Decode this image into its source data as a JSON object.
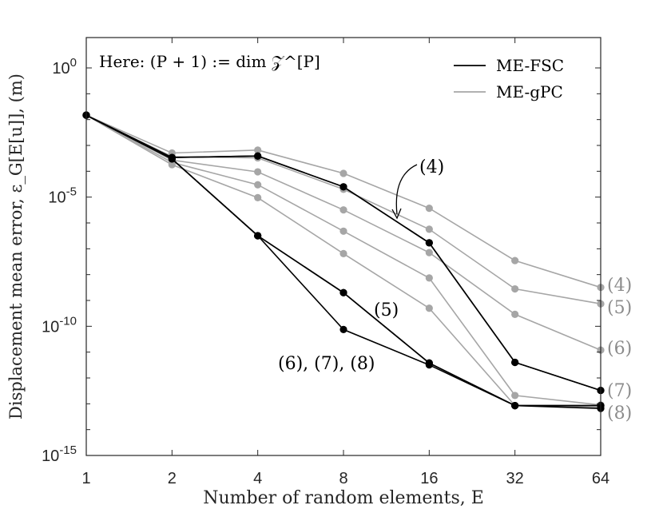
{
  "colors": {
    "me_fsc": "#000000",
    "me_gpc": "#a6a6a6",
    "axis": "#262626"
  },
  "chart_data": {
    "type": "line",
    "xlabel": "Number of random elements, E",
    "ylabel": "Displacement mean error, ε_G[E[u]], (m)",
    "annotation": "Here: (P + 1) := dim 𝒵^[P]",
    "x_scale": "log2",
    "y_scale": "log10",
    "x": [
      1,
      2,
      4,
      8,
      16,
      32,
      64
    ],
    "x_tick_labels": [
      "1",
      "2",
      "4",
      "8",
      "16",
      "32",
      "64"
    ],
    "y_ticks": [
      {
        "value": 1,
        "base": "10",
        "exp": "0"
      },
      {
        "value": 1e-05,
        "base": "10",
        "exp": "-5"
      },
      {
        "value": 1e-10,
        "base": "10",
        "exp": "-10"
      },
      {
        "value": 1e-15,
        "base": "10",
        "exp": "-15"
      }
    ],
    "ylim": [
      1e-15,
      3
    ],
    "xlim": [
      1,
      64
    ],
    "grid": false,
    "legend_position": "top-right",
    "legend": [
      {
        "label": "ME-FSC",
        "color": "#000000"
      },
      {
        "label": "ME-gPC",
        "color": "#a6a6a6"
      }
    ],
    "series": [
      {
        "group": "ME-gPC",
        "level": "(4)",
        "values": [
          0.0148,
          0.00051,
          0.00066,
          8.3e-05,
          3.7e-06,
          3.5e-08,
          3.2e-09
        ]
      },
      {
        "group": "ME-gPC",
        "level": "(5)",
        "values": [
          0.0148,
          0.00037,
          0.00033,
          2e-05,
          5.7e-07,
          2.8e-09,
          7.4e-10
        ]
      },
      {
        "group": "ME-gPC",
        "level": "(6)",
        "values": [
          0.0148,
          0.00027,
          9.5e-05,
          3.2e-06,
          7.1e-08,
          2.9e-10,
          1.2e-11
        ]
      },
      {
        "group": "ME-gPC",
        "level": "(7)",
        "values": [
          0.0148,
          0.00022,
          3e-05,
          4.8e-07,
          7.4e-09,
          2.1e-13,
          9e-14
        ]
      },
      {
        "group": "ME-gPC",
        "level": "(8)",
        "values": [
          0.0148,
          0.00018,
          9.5e-06,
          6.5e-08,
          5e-10,
          8.5e-14,
          7.2e-14
        ]
      },
      {
        "group": "ME-FSC",
        "level": "(4)",
        "values": [
          0.0148,
          0.00034,
          0.00039,
          2.5e-05,
          1.7e-07,
          4e-12,
          3.3e-13
        ]
      },
      {
        "group": "ME-FSC",
        "level": "(5)",
        "values": [
          0.0148,
          0.00034,
          0.00039,
          2.5e-05,
          1.7e-07,
          4e-12,
          3.3e-13
        ]
      },
      {
        "group": "ME-FSC",
        "level": "(6)",
        "values": [
          0.0148,
          0.0003,
          3.2e-07,
          2e-09,
          3.8e-12,
          8.5e-14,
          8.5e-14
        ]
      },
      {
        "group": "ME-FSC",
        "level": "(7)",
        "values": [
          0.0148,
          0.0003,
          3.2e-07,
          2e-09,
          3.8e-12,
          8.5e-14,
          8.5e-14
        ]
      },
      {
        "group": "ME-FSC",
        "level": "(8)",
        "values": [
          0.0148,
          0.0003,
          3.2e-07,
          7.5e-11,
          3.2e-12,
          8.5e-14,
          6.6e-14
        ]
      }
    ],
    "annotations": [
      {
        "text": "(4)",
        "color": "#000000"
      },
      {
        "text": "(5)",
        "color": "#000000"
      },
      {
        "text": "(6), (7), (8)",
        "color": "#000000"
      }
    ],
    "right_labels": [
      "(4)",
      "(5)",
      "(6)",
      "(7)",
      "(8)"
    ]
  }
}
